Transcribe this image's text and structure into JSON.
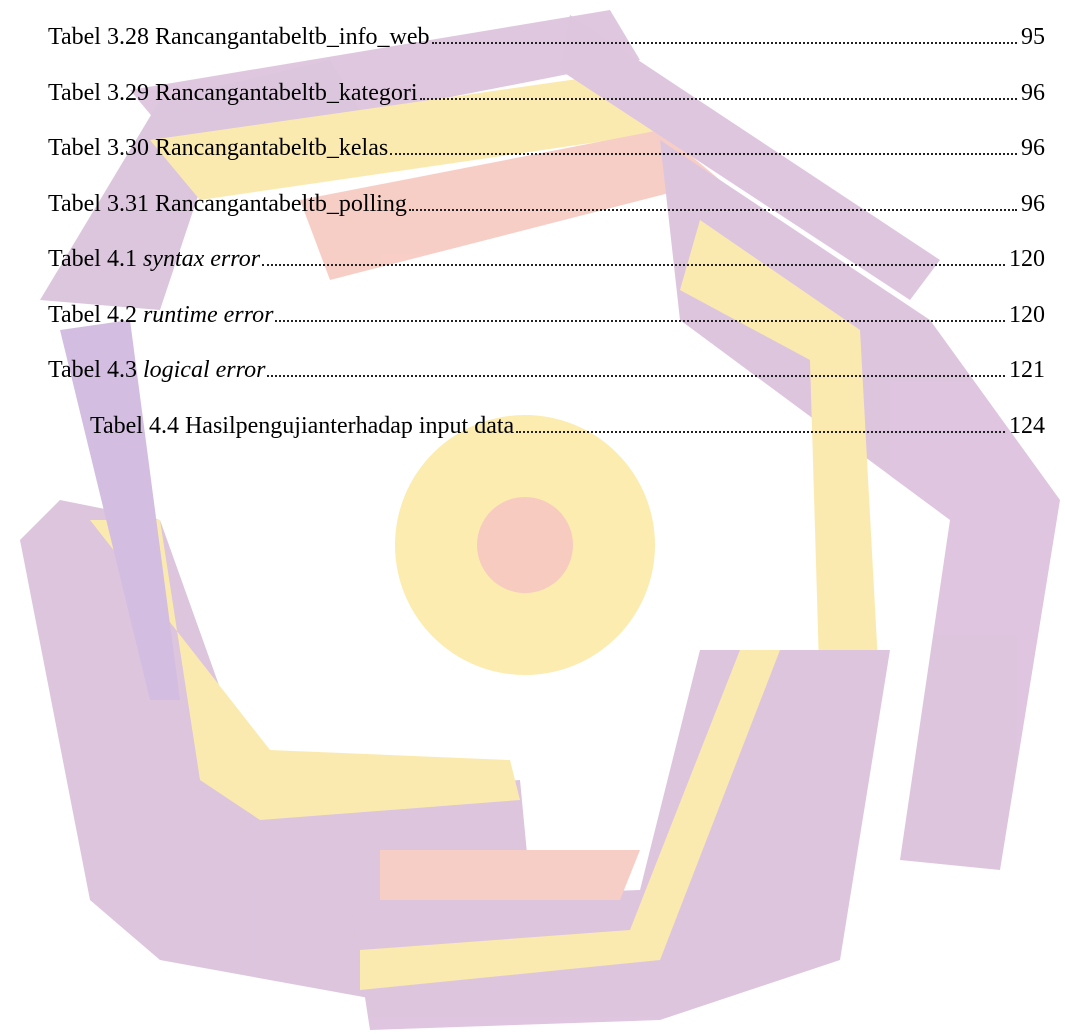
{
  "entries": [
    {
      "label": "Tabel 3.28",
      "title": "Rancangantabeltb_info_web",
      "page": 95
    },
    {
      "label": "Tabel 3.29",
      "title": "Rancangantabeltb_kategori",
      "page": 96
    },
    {
      "label": "Tabel 3.30",
      "title": "Rancangantabeltb_kelas",
      "page": 96
    },
    {
      "label": "Tabel 3.31",
      "title": "Rancangantabeltb_polling",
      "page": 96
    },
    {
      "label": "Tabel 4.1",
      "term": "syntax error",
      "page": 120
    },
    {
      "label": "Tabel 4.2",
      "term": "runtime error",
      "page": 120
    },
    {
      "label": "Tabel 4.3",
      "term": "logical error",
      "page": 121
    },
    {
      "label": "Tabel 4.4",
      "title": "Hasilpengujianterhadap input data",
      "page": 124
    }
  ]
}
